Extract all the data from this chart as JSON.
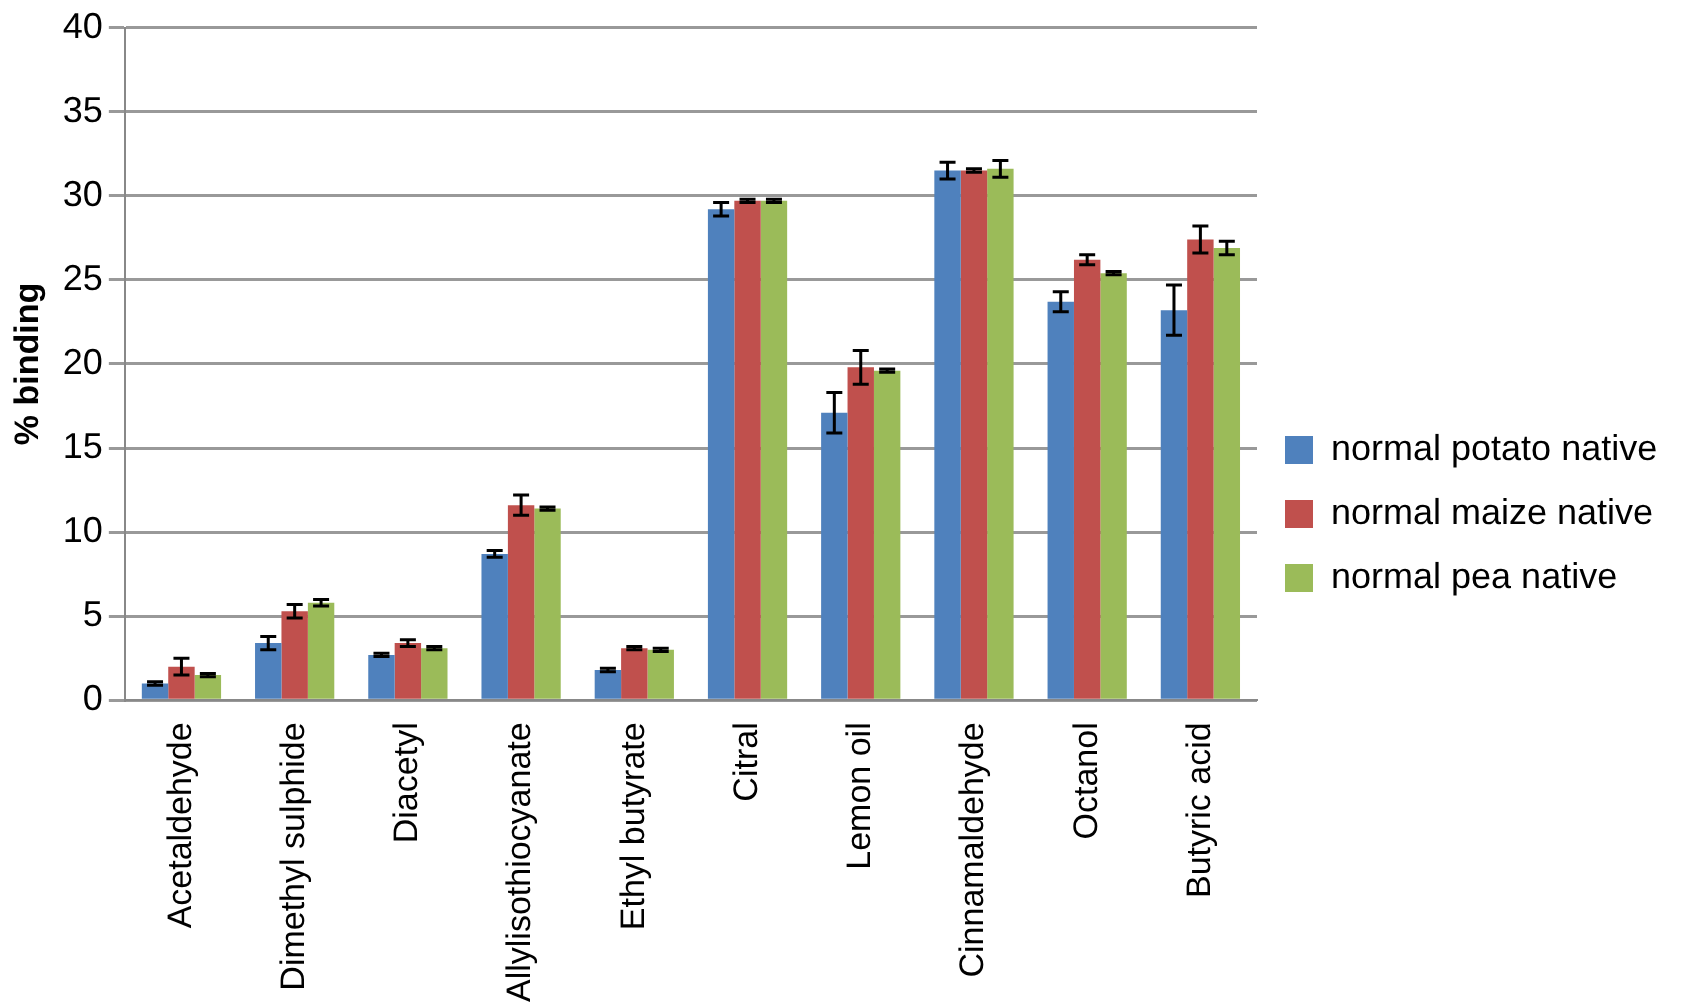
{
  "chart_data": {
    "type": "bar",
    "ylabel": "% binding",
    "categories": [
      "Acetaldehyde",
      "Dimethyl sulphide",
      "Diacetyl",
      "Allylisothiocyanate",
      "Ethyl butyrate",
      "Citral",
      "Lemon oil",
      "Cinnamaldehyde",
      "Octanol",
      "Butyric acid"
    ],
    "series": [
      {
        "name": "normal potato native",
        "color": "#4f81bd",
        "values": [
          1.0,
          3.4,
          2.7,
          8.7,
          1.8,
          29.2,
          17.1,
          31.5,
          23.7,
          23.2
        ],
        "errors": [
          0.1,
          0.4,
          0.1,
          0.2,
          0.1,
          0.4,
          1.2,
          0.5,
          0.6,
          1.5
        ]
      },
      {
        "name": "normal maize native",
        "color": "#c0504d",
        "values": [
          2.0,
          5.3,
          3.4,
          11.6,
          3.1,
          29.7,
          19.8,
          31.5,
          26.2,
          27.4
        ],
        "errors": [
          0.5,
          0.4,
          0.2,
          0.6,
          0.1,
          0.1,
          1.0,
          0.1,
          0.3,
          0.8
        ]
      },
      {
        "name": "normal pea native",
        "color": "#9bbb59",
        "values": [
          1.5,
          5.8,
          3.1,
          11.4,
          3.0,
          29.7,
          19.6,
          31.6,
          25.4,
          26.9
        ],
        "errors": [
          0.1,
          0.2,
          0.1,
          0.1,
          0.1,
          0.1,
          0.1,
          0.5,
          0.1,
          0.4
        ]
      }
    ],
    "ylim": [
      0,
      40
    ],
    "yticks": [
      0,
      5,
      10,
      15,
      20,
      25,
      30,
      35,
      40
    ],
    "grid": "y",
    "legend": "right"
  }
}
